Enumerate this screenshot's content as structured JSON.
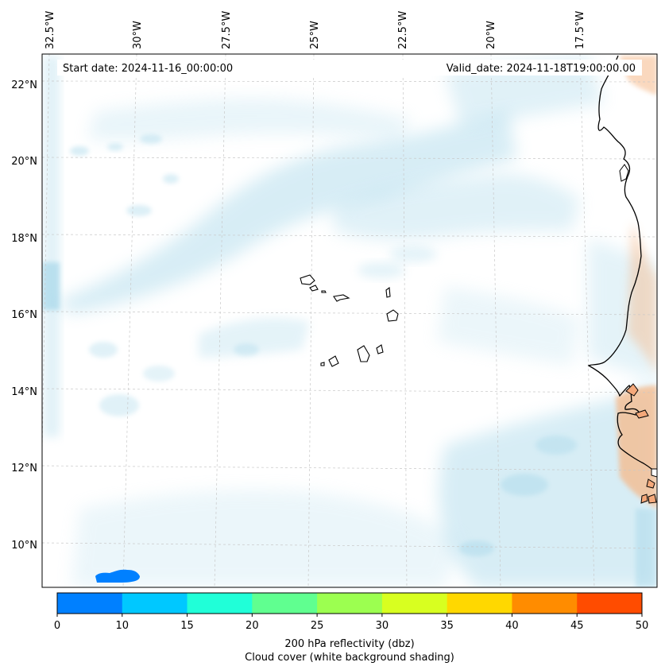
{
  "map": {
    "start_date": "Start date: 2024-11-16_00:00:00",
    "valid_date": "Valid_date: 2024-11-18T19:00:00.00",
    "lon_labels": [
      "32.5°W",
      "30°W",
      "27.5°W",
      "25°W",
      "22.5°W",
      "20°W",
      "17.5°W"
    ],
    "lat_labels": [
      "22°N",
      "20°N",
      "18°N",
      "16°N",
      "14°N",
      "12°N",
      "10°N"
    ]
  },
  "colorbar": {
    "ticks": [
      "0",
      "10",
      "15",
      "20",
      "25",
      "30",
      "35",
      "40",
      "45",
      "50"
    ],
    "colors": [
      "#0080ff",
      "#00c8ff",
      "#20ffd8",
      "#60ff90",
      "#9cff50",
      "#d8ff20",
      "#ffd800",
      "#ff8c00",
      "#ff4c00"
    ],
    "label_line1": "200 hPa reflectivity (dbz)",
    "label_line2": "Cloud cover (white background shading)"
  },
  "colors": {
    "cloud": "#a8d8ea",
    "warm": "#f6b98a",
    "coast": "#000000",
    "grid": "#c8c8c8"
  }
}
